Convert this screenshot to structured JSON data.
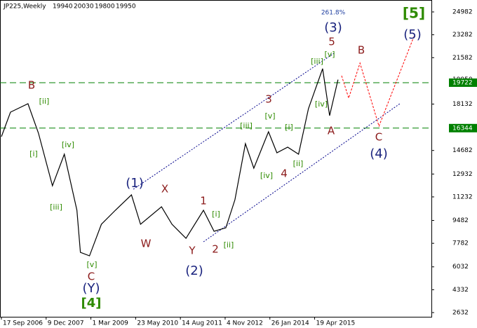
{
  "chart_data": {
    "type": "line",
    "title": "JP225,Weekly",
    "ohlc": [
      19940,
      20030,
      19800,
      19950
    ],
    "xlim": [
      "2006-09-03",
      "2018-07-01"
    ],
    "xticks": [
      {
        "value": "2006-09-17",
        "label": "17 Sep 2006"
      },
      {
        "value": "2007-12-09",
        "label": "9 Dec 2007"
      },
      {
        "value": "2009-03-01",
        "label": "1 Mar 2009"
      },
      {
        "value": "2010-05-23",
        "label": "23 May 2010"
      },
      {
        "value": "2011-08-14",
        "label": "14 Aug 2011"
      },
      {
        "value": "2012-11-04",
        "label": "4 Nov 2012"
      },
      {
        "value": "2014-01-26",
        "label": "26 Jan 2014"
      },
      {
        "value": "2015-04-19",
        "label": "19 Apr 2015"
      }
    ],
    "ylim": [
      2320,
      25763
    ],
    "yticks": [
      24982,
      23282,
      21582,
      18132,
      14682,
      12932,
      11232,
      9482,
      7782,
      6032,
      4332,
      2632
    ],
    "grid": false,
    "series": [
      {
        "name": "JP225",
        "color": "#000000",
        "x": [
          "2006-09-17",
          "2006-12-17",
          "2007-06-10",
          "2007-09-23",
          "2008-02-10",
          "2008-06-08",
          "2008-10-12",
          "2008-11-16",
          "2009-02-15",
          "2009-06-14",
          "2009-11-01",
          "2010-04-11",
          "2010-07-11",
          "2011-02-06",
          "2011-05-22",
          "2011-10-09",
          "2012-04-01",
          "2012-07-16",
          "2012-11-11",
          "2013-02-10",
          "2013-05-26",
          "2013-08-18",
          "2014-01-12",
          "2014-04-06",
          "2014-07-23",
          "2014-11-09",
          "2015-02-16",
          "2015-07-08",
          "2015-09-16",
          "2015-12-09"
        ],
        "values": [
          15708,
          17532,
          18157,
          15969,
          12061,
          14406,
          10238,
          7112,
          6851,
          9196,
          10238,
          11384,
          9196,
          10498,
          9196,
          8154,
          10238,
          8675,
          8935,
          11019,
          15187,
          13364,
          16073,
          14510,
          14927,
          14406,
          17792,
          20762,
          17271,
          19950
        ]
      },
      {
        "name": "Forecast",
        "color": "#ff0000",
        "x": [
          "2016-01-14",
          "2016-03-25",
          "2016-07-16",
          "2017-01-22",
          "2018-01-07"
        ],
        "values": [
          20241,
          18574,
          21179,
          16490,
          23158
        ]
      }
    ],
    "trendlines": [
      {
        "color": "#00008b",
        "x": [
          "2010-04-30",
          "2015-11-09"
        ],
        "values": [
          11801,
          21960
        ]
      },
      {
        "color": "#00008b",
        "x": [
          "2012-04-01",
          "2017-08-19"
        ],
        "values": [
          7893,
          18157
        ]
      }
    ],
    "hlines": [
      {
        "value": 19722,
        "color": "#008000"
      },
      {
        "value": 16344,
        "color": "#008000"
      }
    ],
    "last_price": 19950,
    "annotations": [
      {
        "text": "261.8%",
        "color": "#1f3fa0"
      },
      {
        "text": "(3)",
        "color": "#1a237e"
      },
      {
        "text": "5",
        "color": "#8b1a1a"
      },
      {
        "text": "[v]",
        "color": "#2e8b00"
      },
      {
        "text": "[iii]",
        "color": "#2e8b00"
      },
      {
        "text": "B",
        "color": "#8b1a1a"
      },
      {
        "text": "[ii]",
        "color": "#2e8b00"
      },
      {
        "text": "[i]",
        "color": "#2e8b00"
      },
      {
        "text": "[iv]",
        "color": "#2e8b00"
      },
      {
        "text": "[iii]",
        "color": "#2e8b00"
      },
      {
        "text": "[v]",
        "color": "#2e8b00"
      },
      {
        "text": "C",
        "color": "#8b1a1a"
      },
      {
        "text": "(Y)",
        "color": "#1a237e"
      },
      {
        "text": "[4]",
        "color": "#2e8b00"
      },
      {
        "text": "(1)",
        "color": "#1a237e"
      },
      {
        "text": "X",
        "color": "#8b1a1a"
      },
      {
        "text": "W",
        "color": "#8b1a1a"
      },
      {
        "text": "1",
        "color": "#8b1a1a"
      },
      {
        "text": "Y",
        "color": "#8b1a1a"
      },
      {
        "text": "(2)",
        "color": "#1a237e"
      },
      {
        "text": "2",
        "color": "#8b1a1a"
      },
      {
        "text": "[i]",
        "color": "#2e8b00"
      },
      {
        "text": "[ii]",
        "color": "#2e8b00"
      },
      {
        "text": "3",
        "color": "#8b1a1a"
      },
      {
        "text": "[iii]",
        "color": "#2e8b00"
      },
      {
        "text": "[v]",
        "color": "#2e8b00"
      },
      {
        "text": "[iv]",
        "color": "#2e8b00"
      },
      {
        "text": "[i]",
        "color": "#2e8b00"
      },
      {
        "text": "[ii]",
        "color": "#2e8b00"
      },
      {
        "text": "4",
        "color": "#8b1a1a"
      },
      {
        "text": "[iv]",
        "color": "#2e8b00"
      },
      {
        "text": "A",
        "color": "#8b1a1a"
      },
      {
        "text": "B",
        "color": "#8b1a1a"
      },
      {
        "text": "C",
        "color": "#8b1a1a"
      },
      {
        "text": "(4)",
        "color": "#1a237e"
      },
      {
        "text": "[5]",
        "color": "#2e8b00"
      },
      {
        "text": "(5)",
        "color": "#1a237e"
      }
    ]
  }
}
